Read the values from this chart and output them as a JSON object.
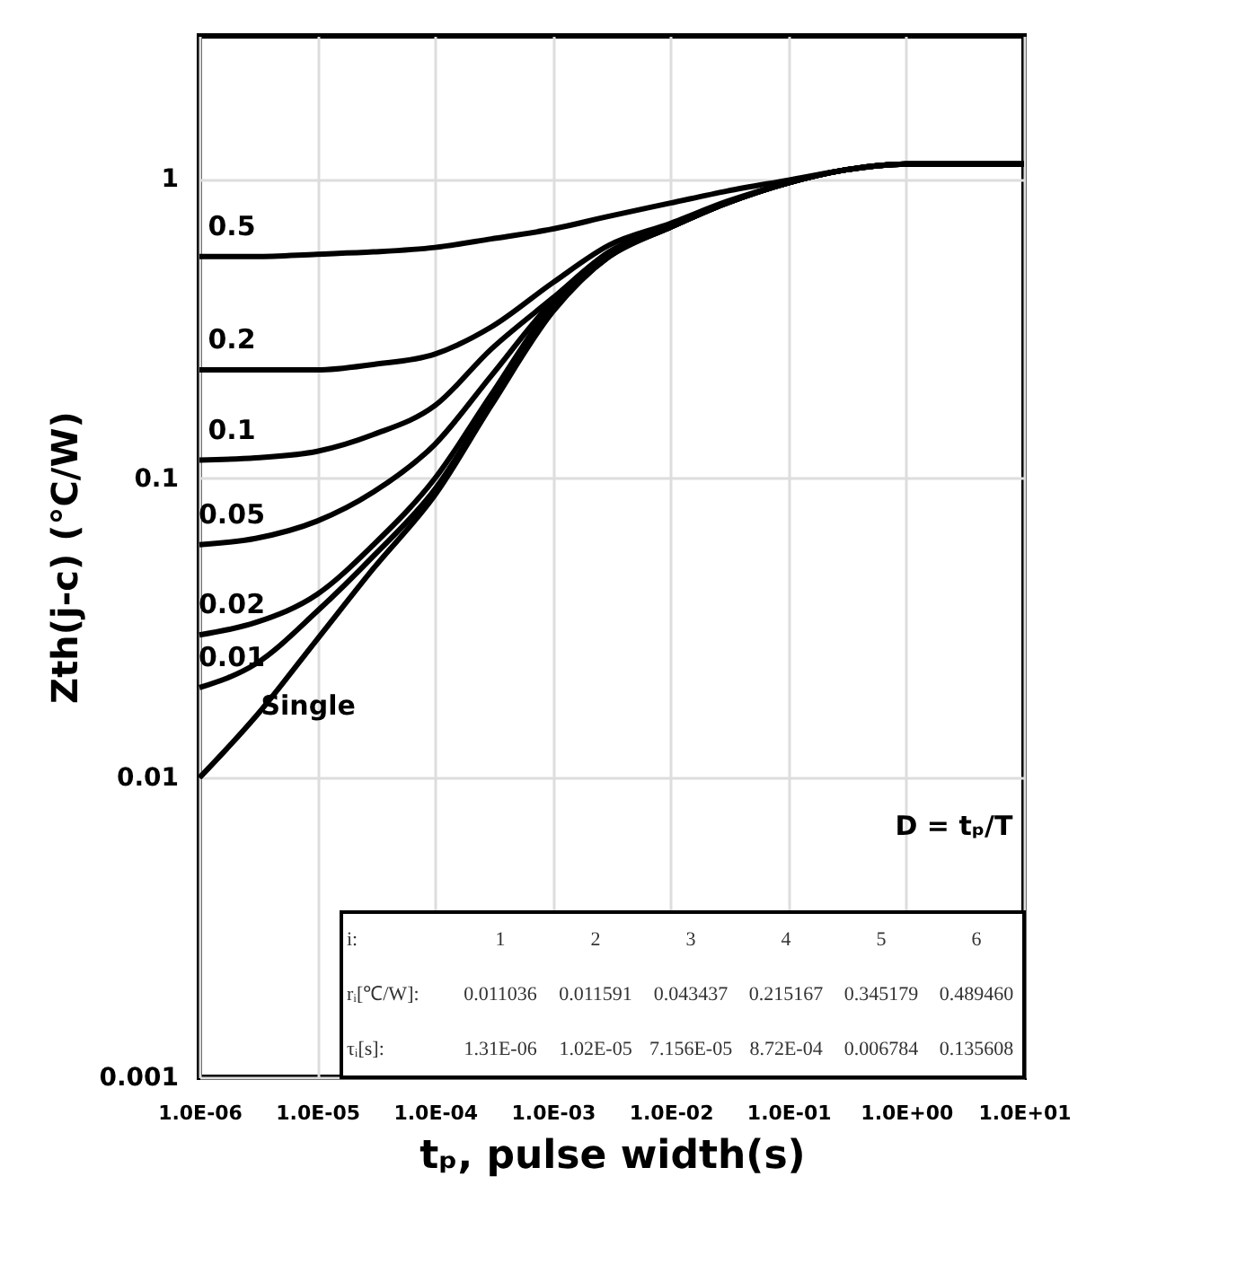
{
  "chart_data": {
    "type": "line",
    "xlabel": "tₚ, pulse width(s)",
    "ylabel": "Zth(j-c) (°C/W)",
    "x": [
      1e-06,
      3e-06,
      1e-05,
      3e-05,
      0.0001,
      0.0003,
      0.001,
      0.003,
      0.01,
      0.03,
      0.1,
      0.3,
      1,
      10
    ],
    "series": [
      {
        "color": "#000000",
        "values": [
          0.55,
          0.55,
          0.56,
          0.57,
          0.59,
          0.63,
          0.68,
          0.75,
          0.83,
          0.91,
          0.99,
          1.07,
          1.12,
          1.12
        ]
      },
      {
        "color": "#000000",
        "values": [
          0.23,
          0.23,
          0.23,
          0.24,
          0.26,
          0.32,
          0.45,
          0.6,
          0.71,
          0.84,
          0.97,
          1.07,
          1.12,
          1.12
        ]
      },
      {
        "color": "#000000",
        "values": [
          0.115,
          0.117,
          0.123,
          0.14,
          0.175,
          0.27,
          0.4,
          0.57,
          0.7,
          0.83,
          0.97,
          1.07,
          1.12,
          1.12
        ]
      },
      {
        "color": "#000000",
        "values": [
          0.06,
          0.063,
          0.072,
          0.09,
          0.13,
          0.22,
          0.39,
          0.56,
          0.69,
          0.83,
          0.97,
          1.07,
          1.12,
          1.12
        ]
      },
      {
        "color": "#000000",
        "values": [
          0.03,
          0.033,
          0.041,
          0.06,
          0.1,
          0.19,
          0.38,
          0.55,
          0.69,
          0.83,
          0.97,
          1.07,
          1.12,
          1.12
        ]
      },
      {
        "color": "#000000",
        "values": [
          0.02,
          0.024,
          0.036,
          0.055,
          0.092,
          0.18,
          0.37,
          0.55,
          0.69,
          0.83,
          0.97,
          1.07,
          1.12,
          1.12
        ]
      },
      {
        "color": "#000000",
        "values": [
          0.01,
          0.016,
          0.029,
          0.05,
          0.088,
          0.175,
          0.36,
          0.55,
          0.69,
          0.83,
          0.97,
          1.07,
          1.12,
          1.12
        ]
      }
    ],
    "xlim": [
      1e-06,
      10
    ],
    "ylim": [
      0.001,
      3
    ],
    "xticks": [
      {
        "value": 1e-06,
        "label": "1.0E-06"
      },
      {
        "value": 1e-05,
        "label": "1.0E-05"
      },
      {
        "value": 0.0001,
        "label": "1.0E-04"
      },
      {
        "value": 0.001,
        "label": "1.0E-03"
      },
      {
        "value": 0.01,
        "label": "1.0E-02"
      },
      {
        "value": 0.1,
        "label": "1.0E-01"
      },
      {
        "value": 1,
        "label": "1.0E+00"
      },
      {
        "value": 10,
        "label": "1.0E+01"
      }
    ],
    "yticks": [
      {
        "value": 0.001,
        "label": "0.001"
      },
      {
        "value": 0.01,
        "label": "0.01"
      },
      {
        "value": 0.1,
        "label": "0.1"
      },
      {
        "value": 1,
        "label": "1"
      }
    ],
    "log": "xy",
    "grid": true,
    "marker": "none",
    "line_style": "solid",
    "annotations": [
      "0.5",
      "0.2",
      "0.1",
      "0.05",
      "0.02",
      "0.01",
      "Single",
      "D = tₚ/T",
      "i:",
      "1",
      "2",
      "3",
      "4",
      "5",
      "6",
      "rᵢ[℃/W]:",
      "0.011036",
      "0.011591",
      "0.043437",
      "0.215167",
      "0.345179",
      "0.489460",
      "τᵢ[s]:",
      "1.31E-06",
      "1.02E-05",
      "7.156E-05",
      "8.72E-04",
      "0.006784",
      "0.135608"
    ]
  }
}
